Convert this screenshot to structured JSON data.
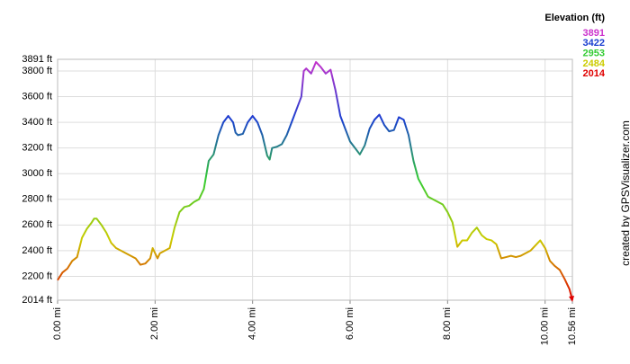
{
  "chart_data": {
    "type": "line",
    "title": "Elevation (ft)",
    "credit": "created by GPSVisualizer.com",
    "x": [
      0,
      0.1,
      0.2,
      0.3,
      0.4,
      0.5,
      0.6,
      0.7,
      0.75,
      0.8,
      0.9,
      1.0,
      1.1,
      1.2,
      1.3,
      1.4,
      1.5,
      1.6,
      1.7,
      1.8,
      1.9,
      1.95,
      2.0,
      2.05,
      2.1,
      2.2,
      2.3,
      2.4,
      2.5,
      2.6,
      2.7,
      2.8,
      2.9,
      3.0,
      3.1,
      3.2,
      3.3,
      3.4,
      3.5,
      3.6,
      3.65,
      3.7,
      3.8,
      3.9,
      4.0,
      4.1,
      4.2,
      4.3,
      4.35,
      4.4,
      4.5,
      4.6,
      4.7,
      4.8,
      4.9,
      5.0,
      5.05,
      5.1,
      5.2,
      5.3,
      5.4,
      5.5,
      5.6,
      5.7,
      5.8,
      5.9,
      6.0,
      6.1,
      6.2,
      6.3,
      6.4,
      6.5,
      6.6,
      6.7,
      6.8,
      6.9,
      7.0,
      7.1,
      7.2,
      7.3,
      7.4,
      7.5,
      7.6,
      7.7,
      7.8,
      7.9,
      8.0,
      8.1,
      8.2,
      8.3,
      8.4,
      8.5,
      8.6,
      8.7,
      8.8,
      8.9,
      9.0,
      9.1,
      9.2,
      9.3,
      9.4,
      9.5,
      9.6,
      9.7,
      9.8,
      9.9,
      10.0,
      10.1,
      10.2,
      10.3,
      10.4,
      10.5,
      10.56
    ],
    "values": [
      2170,
      2230,
      2260,
      2320,
      2350,
      2500,
      2570,
      2620,
      2650,
      2650,
      2600,
      2540,
      2460,
      2420,
      2400,
      2380,
      2360,
      2340,
      2290,
      2300,
      2340,
      2420,
      2380,
      2340,
      2380,
      2400,
      2420,
      2580,
      2700,
      2740,
      2750,
      2780,
      2800,
      2880,
      3100,
      3150,
      3300,
      3400,
      3450,
      3400,
      3320,
      3300,
      3310,
      3400,
      3450,
      3400,
      3300,
      3140,
      3110,
      3200,
      3210,
      3230,
      3300,
      3400,
      3500,
      3600,
      3800,
      3820,
      3780,
      3870,
      3830,
      3780,
      3810,
      3650,
      3450,
      3350,
      3250,
      3200,
      3150,
      3220,
      3350,
      3420,
      3460,
      3380,
      3330,
      3340,
      3440,
      3420,
      3300,
      3100,
      2960,
      2890,
      2820,
      2800,
      2780,
      2760,
      2700,
      2620,
      2430,
      2480,
      2480,
      2540,
      2580,
      2520,
      2490,
      2480,
      2450,
      2340,
      2350,
      2360,
      2350,
      2360,
      2380,
      2400,
      2440,
      2480,
      2420,
      2320,
      2280,
      2250,
      2180,
      2100,
      2014
    ],
    "xlim": [
      0,
      10.56
    ],
    "ylim": [
      2014,
      3891
    ],
    "xticks": [
      {
        "value": 0,
        "label": "0.00 mi"
      },
      {
        "value": 2,
        "label": "2.00 mi"
      },
      {
        "value": 4,
        "label": "4.00 mi"
      },
      {
        "value": 6,
        "label": "6.00 mi"
      },
      {
        "value": 8,
        "label": "8.00 mi"
      },
      {
        "value": 10,
        "label": "10.00 mi"
      },
      {
        "value": 10.56,
        "label": "10.56 mi"
      }
    ],
    "yticks": [
      {
        "value": 2014,
        "label": "2014 ft"
      },
      {
        "value": 2200,
        "label": "2200 ft"
      },
      {
        "value": 2400,
        "label": "2400 ft"
      },
      {
        "value": 2600,
        "label": "2600 ft"
      },
      {
        "value": 2800,
        "label": "2800 ft"
      },
      {
        "value": 3000,
        "label": "3000 ft"
      },
      {
        "value": 3200,
        "label": "3200 ft"
      },
      {
        "value": 3400,
        "label": "3400 ft"
      },
      {
        "value": 3600,
        "label": "3600 ft"
      },
      {
        "value": 3800,
        "label": "3800 ft"
      },
      {
        "value": 3891,
        "label": "3891 ft"
      }
    ],
    "legend": [
      {
        "value": 3891,
        "color": "#cc33cc"
      },
      {
        "value": 3422,
        "color": "#1a3fd0"
      },
      {
        "value": 2953,
        "color": "#33cc33"
      },
      {
        "value": 2484,
        "color": "#cccc00"
      },
      {
        "value": 2014,
        "color": "#e00000"
      }
    ],
    "grid": true
  }
}
